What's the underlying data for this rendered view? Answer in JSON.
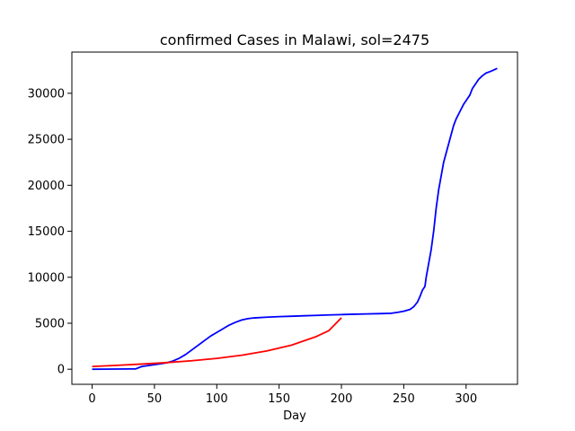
{
  "chart_data": {
    "type": "line",
    "title": "confirmed Cases in Malawi, sol=2475",
    "xlabel": "Day",
    "ylabel": "",
    "xlim": [
      -16.25,
      341.25
    ],
    "ylim": [
      -1640,
      34480
    ],
    "xticks": [
      0,
      50,
      100,
      150,
      200,
      250,
      300
    ],
    "yticks": [
      0,
      5000,
      10000,
      15000,
      20000,
      25000,
      30000
    ],
    "xtick_labels": [
      "0",
      "50",
      "100",
      "150",
      "200",
      "250",
      "300"
    ],
    "ytick_labels": [
      "0",
      "5000",
      "10000",
      "15000",
      "20000",
      "25000",
      "30000"
    ],
    "grid": false,
    "legend": "none",
    "series": [
      {
        "color": "#0000ff",
        "points": [
          [
            0,
            0
          ],
          [
            10,
            10
          ],
          [
            20,
            20
          ],
          [
            30,
            30
          ],
          [
            35,
            40
          ],
          [
            38,
            200
          ],
          [
            40,
            300
          ],
          [
            45,
            400
          ],
          [
            50,
            500
          ],
          [
            55,
            600
          ],
          [
            60,
            700
          ],
          [
            65,
            900
          ],
          [
            70,
            1200
          ],
          [
            75,
            1600
          ],
          [
            80,
            2100
          ],
          [
            85,
            2600
          ],
          [
            90,
            3100
          ],
          [
            95,
            3600
          ],
          [
            100,
            4000
          ],
          [
            105,
            4400
          ],
          [
            110,
            4800
          ],
          [
            115,
            5100
          ],
          [
            120,
            5350
          ],
          [
            125,
            5500
          ],
          [
            130,
            5580
          ],
          [
            140,
            5660
          ],
          [
            150,
            5720
          ],
          [
            160,
            5760
          ],
          [
            170,
            5810
          ],
          [
            180,
            5850
          ],
          [
            190,
            5900
          ],
          [
            200,
            5940
          ],
          [
            210,
            5980
          ],
          [
            220,
            6010
          ],
          [
            230,
            6040
          ],
          [
            240,
            6080
          ],
          [
            245,
            6180
          ],
          [
            250,
            6300
          ],
          [
            255,
            6500
          ],
          [
            258,
            6800
          ],
          [
            261,
            7300
          ],
          [
            263,
            7900
          ],
          [
            265,
            8600
          ],
          [
            267,
            9000
          ],
          [
            268,
            10000
          ],
          [
            270,
            11500
          ],
          [
            272,
            13000
          ],
          [
            274,
            15000
          ],
          [
            276,
            17500
          ],
          [
            278,
            19500
          ],
          [
            280,
            21000
          ],
          [
            282,
            22500
          ],
          [
            285,
            24000
          ],
          [
            288,
            25500
          ],
          [
            290,
            26500
          ],
          [
            292,
            27200
          ],
          [
            295,
            28000
          ],
          [
            298,
            28800
          ],
          [
            300,
            29200
          ],
          [
            303,
            29800
          ],
          [
            305,
            30500
          ],
          [
            308,
            31100
          ],
          [
            310,
            31500
          ],
          [
            313,
            31900
          ],
          [
            316,
            32200
          ],
          [
            320,
            32400
          ],
          [
            325,
            32700
          ]
        ]
      },
      {
        "color": "#ff0000",
        "points": [
          [
            0,
            300
          ],
          [
            20,
            420
          ],
          [
            40,
            560
          ],
          [
            60,
            720
          ],
          [
            80,
            920
          ],
          [
            100,
            1180
          ],
          [
            120,
            1520
          ],
          [
            140,
            1980
          ],
          [
            160,
            2620
          ],
          [
            180,
            3560
          ],
          [
            190,
            4200
          ],
          [
            200,
            5600
          ]
        ]
      }
    ]
  }
}
